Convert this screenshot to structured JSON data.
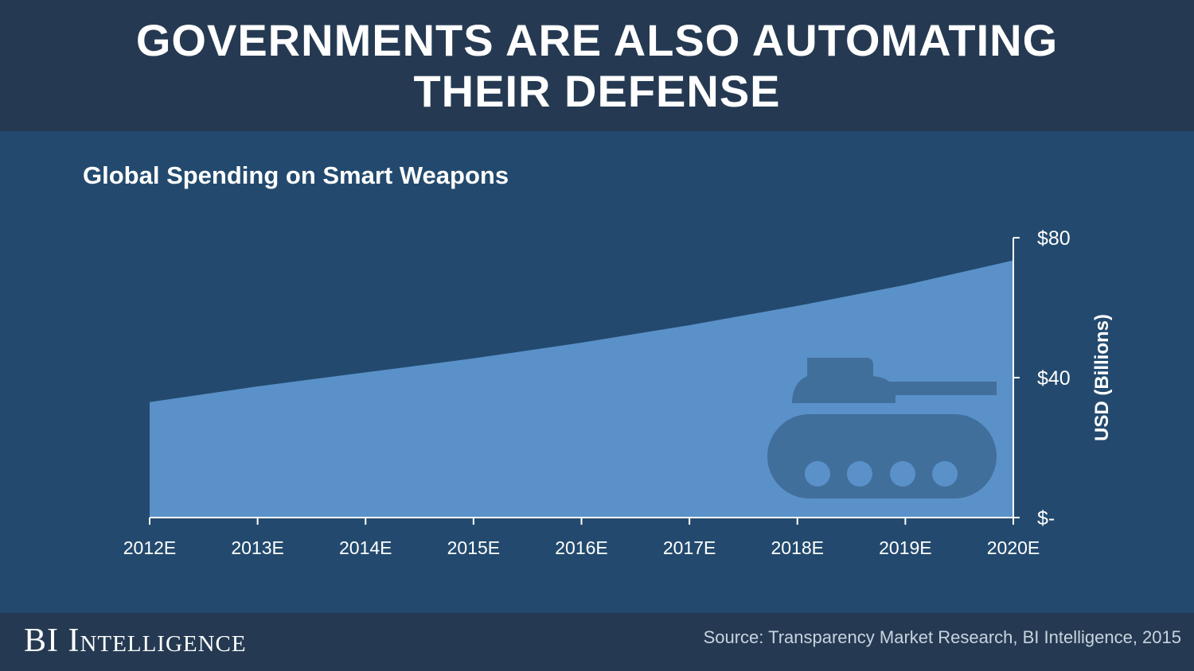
{
  "header": {
    "title_line1": "GOVERNMENTS ARE ALSO AUTOMATING",
    "title_line2": "THEIR DEFENSE"
  },
  "chart_data": {
    "type": "area",
    "title": "Global Spending on Smart Weapons",
    "categories": [
      "2012E",
      "2013E",
      "2014E",
      "2015E",
      "2016E",
      "2017E",
      "2018E",
      "2019E",
      "2020E"
    ],
    "values": [
      33,
      37.5,
      41.5,
      45.5,
      50,
      55,
      60.5,
      66.5,
      73.5
    ],
    "ylabel": "USD (Billions)",
    "ylim": [
      0,
      80
    ],
    "yticks": [
      0,
      40,
      80
    ],
    "ytick_labels": [
      "$-",
      "$40",
      "$80"
    ],
    "yaxis_side": "right",
    "area_color": "#5a91c9",
    "axis_color": "#ffffff",
    "icon": "tank-icon"
  },
  "footer": {
    "brand": "BI Intelligence",
    "source": "Source: Transparency Market Research, BI Intelligence, 2015"
  },
  "colors": {
    "background": "#234a6e",
    "header_bg": "#253a52",
    "tank": "#416f9b"
  }
}
